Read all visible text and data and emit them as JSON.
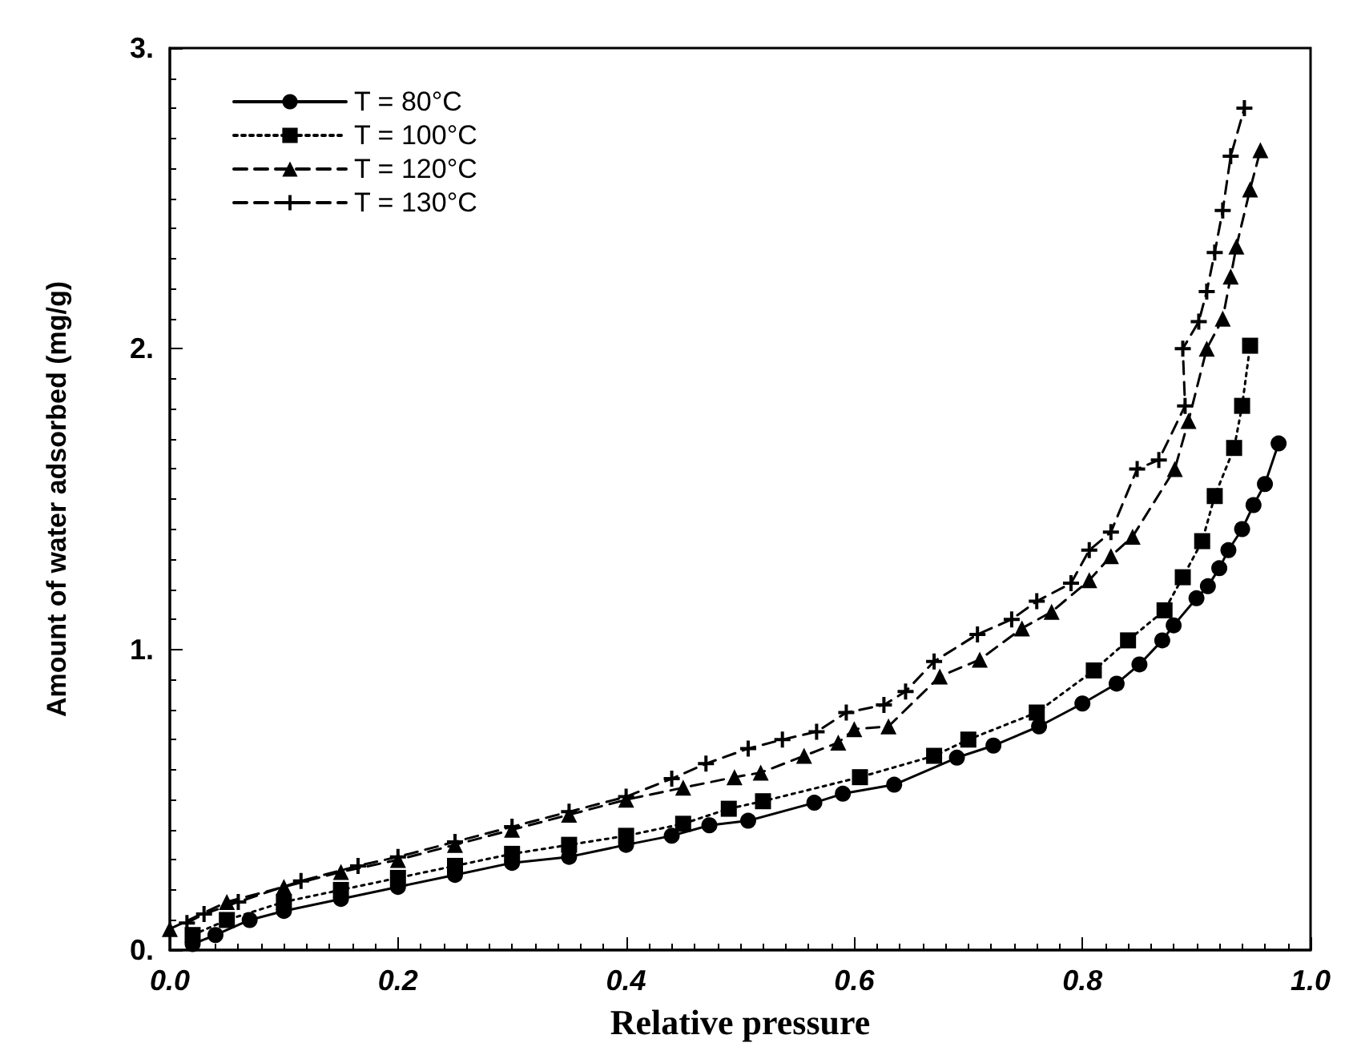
{
  "chart_data": {
    "type": "line",
    "xlabel": "Relative pressure",
    "ylabel": "Amount of water adsorbed (mg/g)",
    "xlim": [
      0,
      1
    ],
    "xticks": [
      {
        "value": 0,
        "label": "0.0"
      },
      0.2,
      0.4,
      0.6,
      0.8,
      {
        "value": 1,
        "label": "1.0"
      }
    ],
    "ylim": [
      0,
      3
    ],
    "yticks": [
      {
        "value": 0,
        "label": "0."
      },
      {
        "value": 1,
        "label": "1."
      },
      {
        "value": 2,
        "label": "2."
      },
      {
        "value": 3,
        "label": "3."
      }
    ],
    "grid": false,
    "legend": "top left",
    "series": [
      {
        "name": "T = 80°C",
        "color": "#000000",
        "marker": "circle",
        "line_style": "solid",
        "x": [
          0.02,
          0.04,
          0.07,
          0.1,
          0.15,
          0.2,
          0.25,
          0.3,
          0.35,
          0.4,
          0.44,
          0.473,
          0.507,
          0.565,
          0.59,
          0.635,
          0.69,
          0.722,
          0.762,
          0.8,
          0.83,
          0.85,
          0.87,
          0.88,
          0.9,
          0.91,
          0.92,
          0.928,
          0.94,
          0.95,
          0.96,
          0.972
        ],
        "values": [
          0.02,
          0.05,
          0.1,
          0.13,
          0.17,
          0.21,
          0.25,
          0.29,
          0.31,
          0.35,
          0.38,
          0.415,
          0.43,
          0.49,
          0.52,
          0.55,
          0.64,
          0.68,
          0.744,
          0.82,
          0.886,
          0.95,
          1.03,
          1.08,
          1.17,
          1.21,
          1.27,
          1.33,
          1.4,
          1.48,
          1.55,
          1.685
        ]
      },
      {
        "name": "T = 100°C",
        "color": "#000000",
        "marker": "square",
        "line_style": "dotted",
        "x": [
          0.02,
          0.05,
          0.1,
          0.15,
          0.2,
          0.25,
          0.3,
          0.35,
          0.4,
          0.45,
          0.49,
          0.52,
          0.605,
          0.67,
          0.7,
          0.76,
          0.81,
          0.84,
          0.872,
          0.888,
          0.905,
          0.916,
          0.933,
          0.94,
          0.947
        ],
        "values": [
          0.05,
          0.1,
          0.16,
          0.2,
          0.24,
          0.28,
          0.32,
          0.35,
          0.38,
          0.42,
          0.47,
          0.495,
          0.575,
          0.646,
          0.7,
          0.79,
          0.93,
          1.03,
          1.13,
          1.24,
          1.36,
          1.51,
          1.67,
          1.81,
          2.01
        ]
      },
      {
        "name": "T = 120°C",
        "color": "#000000",
        "marker": "triangle",
        "line_style": "dashed",
        "x": [
          0,
          0.05,
          0.1,
          0.15,
          0.2,
          0.25,
          0.3,
          0.35,
          0.4,
          0.45,
          0.495,
          0.518,
          0.556,
          0.586,
          0.6,
          0.63,
          0.675,
          0.71,
          0.747,
          0.773,
          0.806,
          0.825,
          0.844,
          0.881,
          0.893,
          0.909,
          0.923,
          0.93,
          0.935,
          0.947,
          0.956
        ],
        "values": [
          0.07,
          0.16,
          0.21,
          0.26,
          0.3,
          0.35,
          0.4,
          0.45,
          0.5,
          0.54,
          0.575,
          0.59,
          0.646,
          0.69,
          0.735,
          0.744,
          0.91,
          0.966,
          1.07,
          1.125,
          1.23,
          1.31,
          1.375,
          1.6,
          1.76,
          2.0,
          2.1,
          2.24,
          2.34,
          2.53,
          2.66
        ]
      },
      {
        "name": "T = 130°C",
        "color": "#000000",
        "marker": "cross",
        "line_style": "dashed",
        "x": [
          0.015,
          0.03,
          0.06,
          0.115,
          0.165,
          0.2,
          0.25,
          0.3,
          0.35,
          0.4,
          0.44,
          0.47,
          0.507,
          0.537,
          0.567,
          0.593,
          0.626,
          0.645,
          0.67,
          0.708,
          0.738,
          0.76,
          0.79,
          0.806,
          0.825,
          0.848,
          0.867,
          0.89,
          0.888,
          0.902,
          0.909,
          0.916,
          0.923,
          0.93,
          0.942
        ],
        "values": [
          0.09,
          0.12,
          0.16,
          0.23,
          0.28,
          0.31,
          0.36,
          0.41,
          0.46,
          0.51,
          0.57,
          0.62,
          0.67,
          0.7,
          0.726,
          0.79,
          0.815,
          0.86,
          0.96,
          1.05,
          1.1,
          1.16,
          1.22,
          1.33,
          1.39,
          1.6,
          1.63,
          1.81,
          2.0,
          2.09,
          2.19,
          2.32,
          2.46,
          2.64,
          2.8
        ]
      }
    ]
  }
}
